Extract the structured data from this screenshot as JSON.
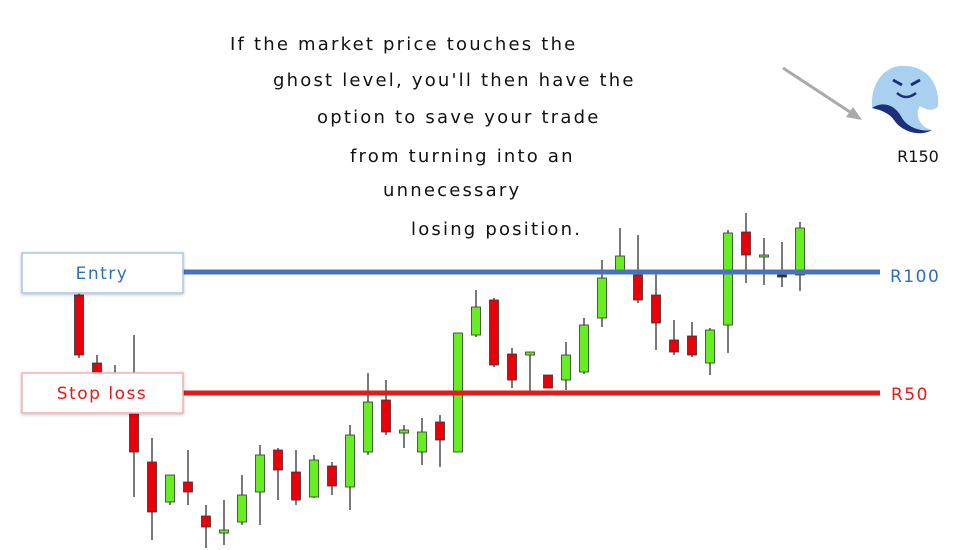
{
  "annotation": {
    "lines": [
      "If the market price touches the",
      "ghost level, you'll then have the",
      "option to save your trade",
      "from turning into an",
      "unnecessary",
      "losing position."
    ]
  },
  "levels": {
    "entry": {
      "label": "Entry",
      "price": "R100"
    },
    "stop_loss": {
      "label": "Stop loss",
      "price": "R50"
    },
    "ghost": {
      "price": "R150"
    }
  }
}
